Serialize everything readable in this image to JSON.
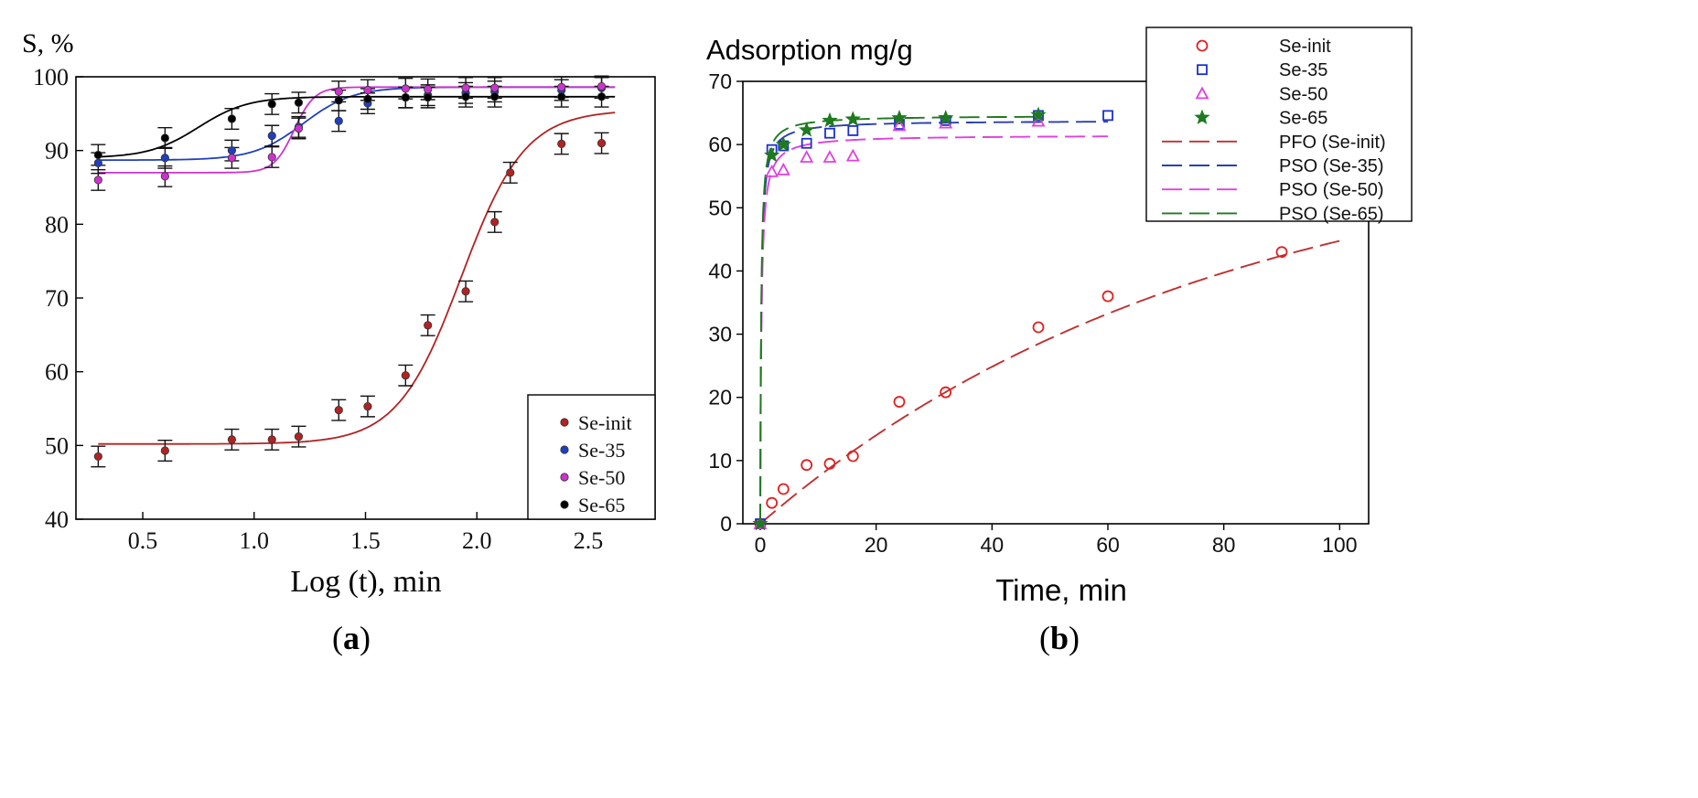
{
  "chart_data": [
    {
      "id": "panel_a",
      "type": "scatter",
      "caption_open": "(",
      "caption_letter": "a",
      "caption_close": ")",
      "ylabel": "S, %",
      "xlabel": "Log (t), min",
      "xlim": [
        0.2,
        2.8
      ],
      "ylim": [
        40,
        100
      ],
      "xticks": [
        0.5,
        1.0,
        1.5,
        2.0,
        2.5
      ],
      "xtick_labels": [
        "0.5",
        "1.0",
        "1.5",
        "2.0",
        "2.5"
      ],
      "yticks": [
        40,
        50,
        60,
        70,
        80,
        90,
        100
      ],
      "ytick_labels": [
        "40",
        "50",
        "60",
        "70",
        "80",
        "90",
        "100"
      ],
      "legend_position": "bottom-right",
      "series": [
        {
          "name": "Se-init",
          "color": "#b22222",
          "x": [
            0.3,
            0.6,
            0.9,
            1.08,
            1.2,
            1.38,
            1.51,
            1.68,
            1.78,
            1.95,
            2.08,
            2.15,
            2.38,
            2.56
          ],
          "y": [
            48.5,
            49.3,
            50.8,
            50.8,
            51.2,
            54.8,
            55.3,
            59.5,
            66.3,
            70.9,
            80.3,
            87.0,
            90.9,
            91.0
          ],
          "err": 1.4,
          "fit": {
            "model": "sigmoid",
            "base": 50.2,
            "top": 95.5,
            "x0": 1.93,
            "k": 7.0,
            "x_range": [
              0.3,
              2.62
            ]
          }
        },
        {
          "name": "Se-35",
          "color": "#1f3fbf",
          "x": [
            0.3,
            0.6,
            0.9,
            1.08,
            1.2,
            1.38,
            1.51,
            1.68,
            1.78,
            1.95,
            2.08,
            2.38,
            2.56
          ],
          "y": [
            88.3,
            89.0,
            90.0,
            92.0,
            93.2,
            94.0,
            96.4,
            97.2,
            97.5,
            97.8,
            98.0,
            98.2,
            98.5
          ],
          "err": 1.4,
          "fit": {
            "model": "sigmoid",
            "base": 88.7,
            "top": 98.6,
            "x0": 1.22,
            "k": 9.0,
            "x_range": [
              0.3,
              2.62
            ]
          }
        },
        {
          "name": "Se-50",
          "color": "#cc33cc",
          "x": [
            0.3,
            0.6,
            0.9,
            1.08,
            1.2,
            1.38,
            1.51,
            1.68,
            1.78,
            1.95,
            2.08,
            2.38,
            2.56
          ],
          "y": [
            86.0,
            86.5,
            89.0,
            89.1,
            93.0,
            98.0,
            98.2,
            98.4,
            98.3,
            98.5,
            98.5,
            98.6,
            98.7
          ],
          "err": 1.4,
          "fit": {
            "model": "sigmoid",
            "base": 87.0,
            "top": 98.6,
            "x0": 1.18,
            "k": 22.0,
            "x_range": [
              0.3,
              2.62
            ]
          }
        },
        {
          "name": "Se-65",
          "color": "#000000",
          "x": [
            0.3,
            0.6,
            0.9,
            1.08,
            1.2,
            1.38,
            1.51,
            1.68,
            1.78,
            1.95,
            2.08,
            2.38,
            2.56
          ],
          "y": [
            89.4,
            91.7,
            94.3,
            96.3,
            96.5,
            96.8,
            97.0,
            97.2,
            97.2,
            97.3,
            97.3,
            97.3,
            97.3
          ],
          "err": 1.4,
          "fit": {
            "model": "sigmoid",
            "base": 89.0,
            "top": 97.3,
            "x0": 0.75,
            "k": 9.0,
            "x_range": [
              0.3,
              2.62
            ]
          }
        }
      ]
    },
    {
      "id": "panel_b",
      "type": "scatter",
      "caption_open": "(",
      "caption_letter": "b",
      "caption_close": ")",
      "ylabel": "Adsorption mg/g",
      "xlabel": "Time, min",
      "xlim": [
        -3,
        105
      ],
      "ylim": [
        0,
        70
      ],
      "xticks": [
        0,
        20,
        40,
        60,
        80,
        100
      ],
      "xtick_labels": [
        "0",
        "20",
        "40",
        "60",
        "80",
        "100"
      ],
      "yticks": [
        0,
        10,
        20,
        30,
        40,
        50,
        60,
        70
      ],
      "ytick_labels": [
        "0",
        "10",
        "20",
        "30",
        "40",
        "50",
        "60",
        "70"
      ],
      "legend_position": "top-right",
      "series": [
        {
          "name": "Se-init",
          "marker": "circle",
          "color": "#e02020",
          "x": [
            0,
            2,
            4,
            8,
            12,
            16,
            24,
            32,
            48,
            60,
            90
          ],
          "y": [
            0,
            3.3,
            5.5,
            9.3,
            9.5,
            10.7,
            19.3,
            20.8,
            31.1,
            36.0,
            43.0
          ]
        },
        {
          "name": "Se-35",
          "marker": "square",
          "color": "#1a2fd0",
          "x": [
            0,
            2,
            4,
            8,
            12,
            16,
            24,
            32,
            48,
            60
          ],
          "y": [
            0,
            59.2,
            59.8,
            60.2,
            61.8,
            62.2,
            63.2,
            63.8,
            64.6,
            64.6
          ]
        },
        {
          "name": "Se-50",
          "marker": "triangle",
          "color": "#e040e0",
          "x": [
            0,
            2,
            4,
            8,
            12,
            16,
            24,
            32,
            48
          ],
          "y": [
            0,
            55.7,
            56.0,
            58.0,
            58.0,
            58.2,
            63.0,
            63.4,
            63.7
          ]
        },
        {
          "name": "Se-65",
          "marker": "star",
          "color": "#1f7a1f",
          "x": [
            0,
            2,
            4,
            8,
            12,
            16,
            24,
            32,
            48
          ],
          "y": [
            0,
            58.3,
            60.0,
            62.3,
            63.8,
            64.0,
            64.2,
            64.2,
            64.7
          ]
        }
      ],
      "fits": [
        {
          "name": "PFO (Se-init)",
          "color": "#c03030",
          "model": "pfo",
          "qe": 62.0,
          "k": 0.0128,
          "x_range": [
            0,
            100
          ]
        },
        {
          "name": "PSO (Se-35)",
          "color": "#2a3fb0",
          "model": "pso",
          "qe": 63.8,
          "k": 0.09,
          "x_range": [
            0,
            60
          ]
        },
        {
          "name": "PSO (Se-50)",
          "color": "#e040e0",
          "model": "pso",
          "qe": 61.5,
          "k": 0.08,
          "x_range": [
            0,
            60
          ]
        },
        {
          "name": "PSO (Se-65)",
          "color": "#1f7a1f",
          "model": "pso",
          "qe": 64.6,
          "k": 0.1,
          "x_range": [
            0,
            48
          ]
        }
      ]
    }
  ]
}
